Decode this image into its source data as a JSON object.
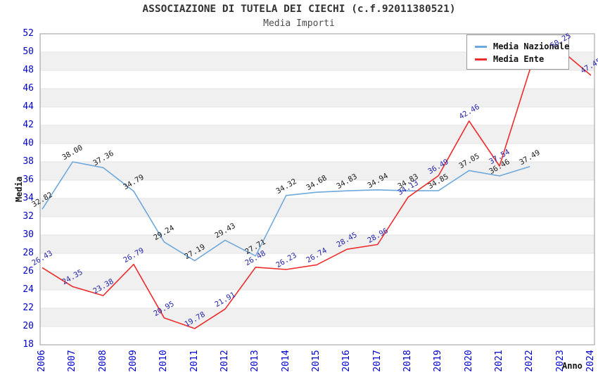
{
  "header": {
    "title": "ASSOCIAZIONE DI TUTELA DEI CIECHI (c.f.92011380521)",
    "subtitle": "Media Importi"
  },
  "chart_data": {
    "type": "line",
    "x": [
      2006,
      2007,
      2008,
      2009,
      2010,
      2011,
      2012,
      2013,
      2014,
      2015,
      2016,
      2017,
      2018,
      2019,
      2020,
      2021,
      2022,
      2023,
      2024
    ],
    "xlabel": "Anno",
    "ylabel": "Media",
    "ylim": [
      18,
      52
    ],
    "ytick_step": 2,
    "grid": "horizontal gridlines with alternating light-gray bands every 2 units",
    "legend_position": "top-right",
    "point_labels_rotation_deg": -30,
    "series": [
      {
        "name": "Media Nazionale",
        "color": "#6FA8DC",
        "label_color": "#1a1a1a",
        "values": [
          32.82,
          38.0,
          37.36,
          34.79,
          29.24,
          27.19,
          29.43,
          27.71,
          34.32,
          34.68,
          34.83,
          34.94,
          34.83,
          34.85,
          37.05,
          36.46,
          37.49,
          null,
          null
        ]
      },
      {
        "name": "Media Ente",
        "color": "#EE2C2C",
        "label_color": "#2424AE",
        "values": [
          26.43,
          24.35,
          23.38,
          26.79,
          20.95,
          19.78,
          21.91,
          26.48,
          26.23,
          26.74,
          28.45,
          28.96,
          34.13,
          36.49,
          42.46,
          37.54,
          48.11,
          50.25,
          47.45
        ],
        "label_hidden_behind_legend_indices": [
          16
        ]
      }
    ],
    "visible_point_labels_note": "2022 Media Ente label is mostly hidden behind the legend box",
    "colors": {
      "axis_tick_text": "#0000cc",
      "band_fill": "#f0f0f0",
      "gridline": "#e3e3e3",
      "plot_border": "#9a9a9a",
      "title_text": "#333333",
      "subtitle_text": "#4d4d4d"
    }
  }
}
